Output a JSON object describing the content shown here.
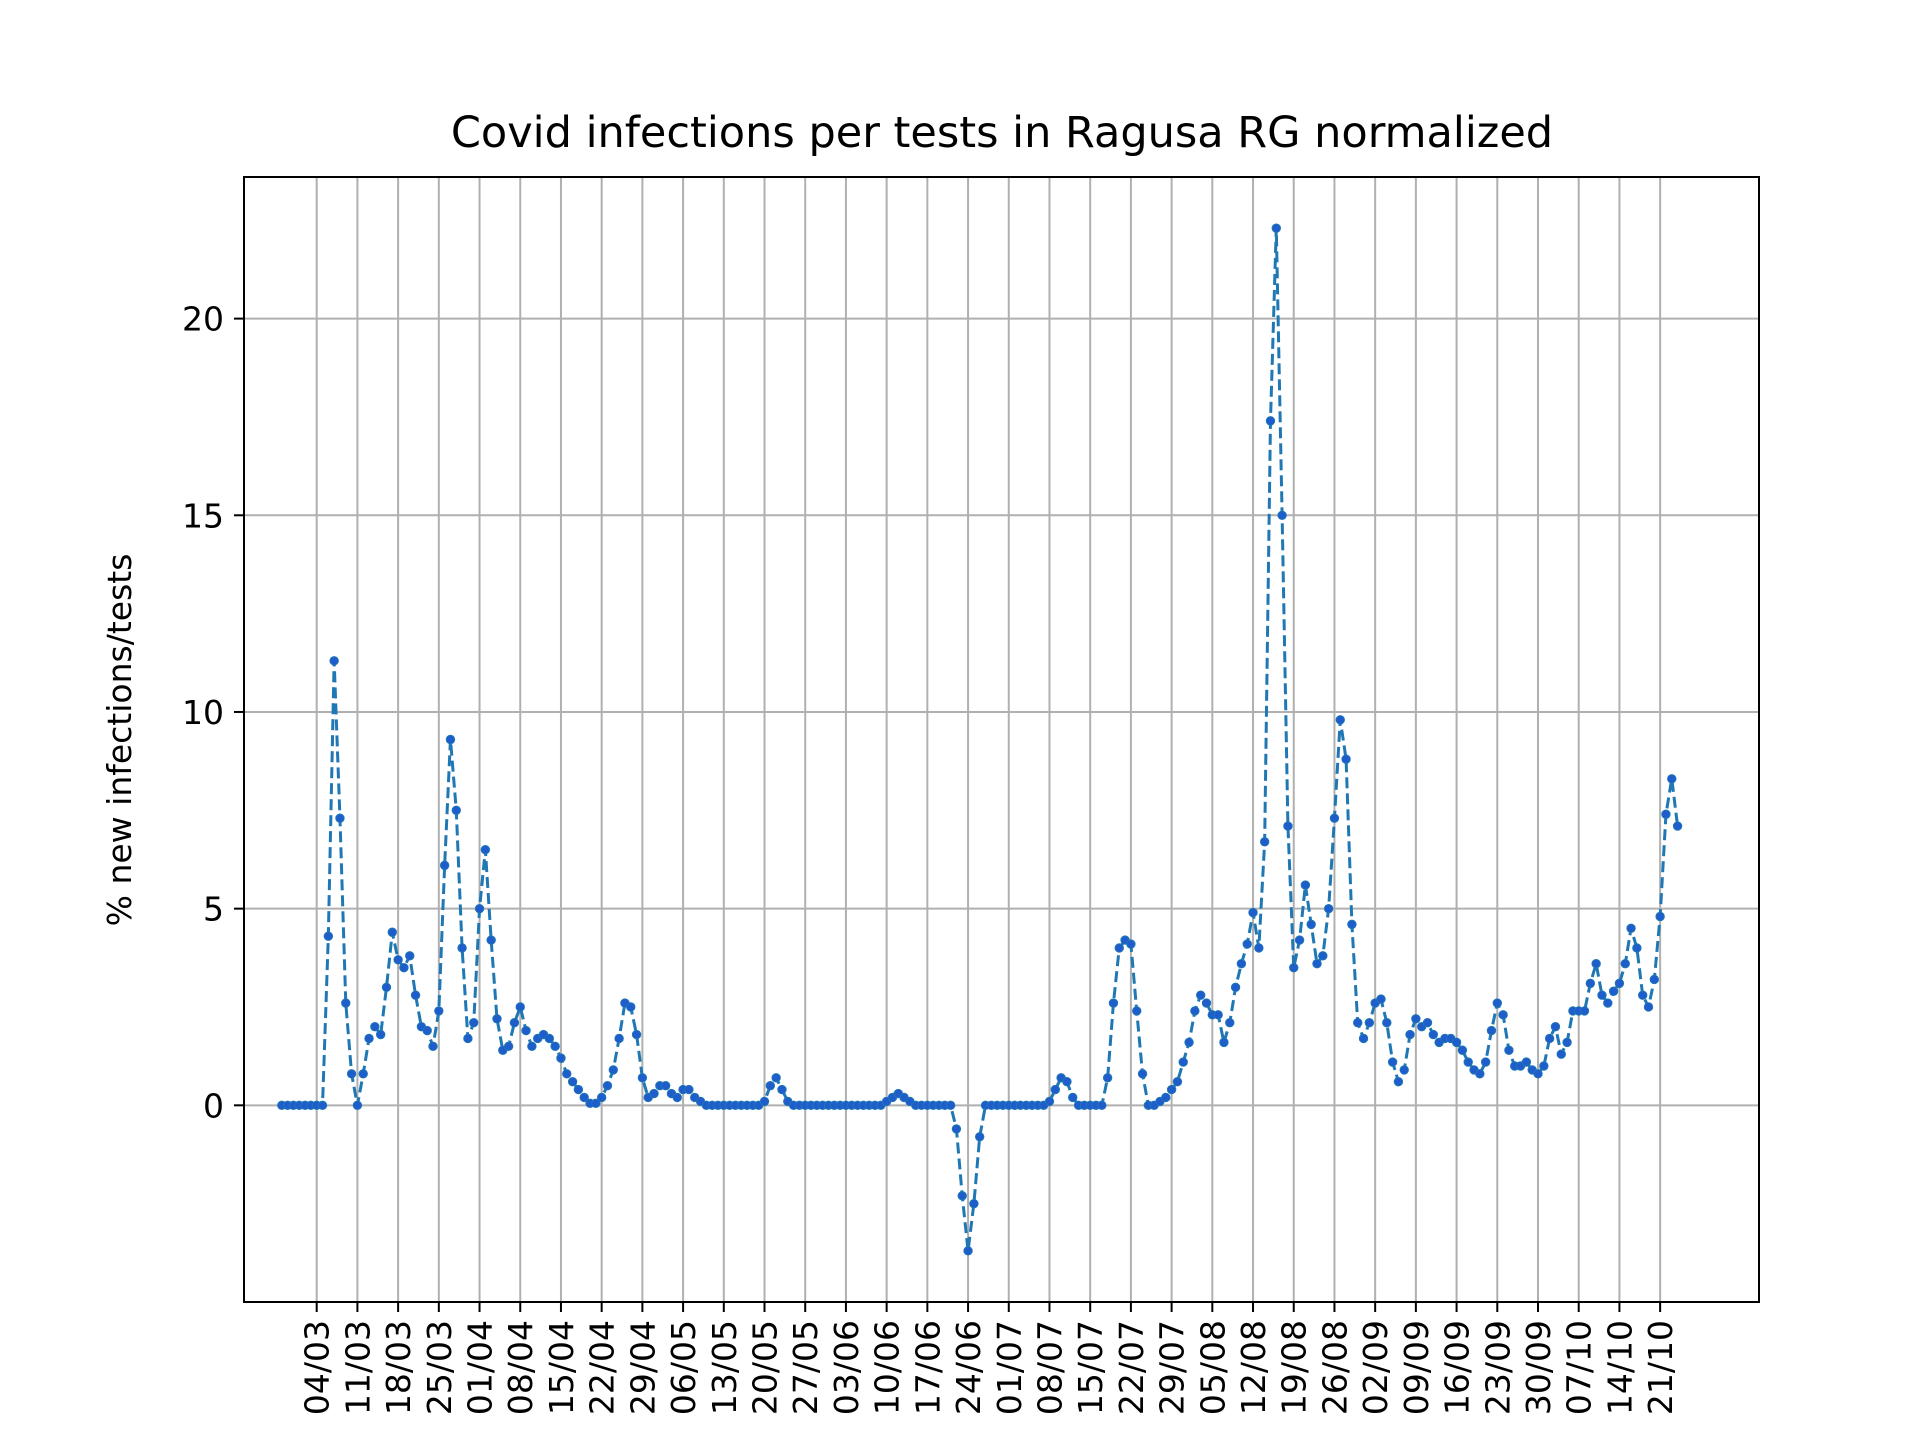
{
  "chart_data": {
    "type": "line",
    "title": "Covid infections per tests in Ragusa RG normalized",
    "ylabel": "% new infections/tests",
    "xlabel": "",
    "grid": true,
    "ylim": [
      -5,
      23.6
    ],
    "xlim": [
      -6.5,
      254
    ],
    "yticks": [
      0,
      5,
      10,
      15,
      20
    ],
    "xtick_labels": [
      "04/03",
      "11/03",
      "18/03",
      "25/03",
      "01/04",
      "08/04",
      "15/04",
      "22/04",
      "29/04",
      "06/05",
      "13/05",
      "20/05",
      "27/05",
      "03/06",
      "10/06",
      "17/06",
      "24/06",
      "01/07",
      "08/07",
      "15/07",
      "22/07",
      "29/07",
      "05/08",
      "12/08",
      "19/08",
      "26/08",
      "02/09",
      "09/09",
      "16/09",
      "23/09",
      "30/09",
      "07/10",
      "14/10",
      "21/10"
    ],
    "xtick_positions": [
      6,
      13,
      20,
      27,
      34,
      41,
      48,
      55,
      62,
      69,
      76,
      83,
      90,
      97,
      104,
      111,
      118,
      125,
      132,
      139,
      146,
      153,
      160,
      167,
      174,
      181,
      188,
      195,
      202,
      209,
      216,
      223,
      230,
      237
    ],
    "series": [
      {
        "color": "#1f77b4",
        "marker_color": "#1f5ccc",
        "line_style": "dashed",
        "values": [
          0,
          0,
          0,
          0,
          0,
          0,
          0,
          0,
          4.3,
          11.3,
          7.3,
          2.6,
          0.8,
          0,
          0.8,
          1.7,
          2,
          1.8,
          3,
          4.4,
          3.7,
          3.5,
          3.8,
          2.8,
          2,
          1.9,
          1.5,
          2.4,
          6.1,
          9.3,
          7.5,
          4,
          1.7,
          2.1,
          5,
          6.5,
          4.2,
          2.2,
          1.4,
          1.5,
          2.1,
          2.5,
          1.9,
          1.5,
          1.7,
          1.8,
          1.7,
          1.5,
          1.2,
          0.8,
          0.6,
          0.4,
          0.2,
          0.05,
          0.05,
          0.2,
          0.5,
          0.9,
          1.7,
          2.6,
          2.5,
          1.8,
          0.7,
          0.2,
          0.3,
          0.5,
          0.5,
          0.3,
          0.2,
          0.4,
          0.4,
          0.2,
          0.1,
          0,
          0,
          0,
          0,
          0,
          0,
          0,
          0,
          0,
          0,
          0.1,
          0.5,
          0.7,
          0.4,
          0.1,
          0,
          0,
          0,
          0,
          0,
          0,
          0,
          0,
          0,
          0,
          0,
          0,
          0,
          0,
          0,
          0,
          0.1,
          0.2,
          0.3,
          0.2,
          0.1,
          0,
          0,
          0,
          0,
          0,
          0,
          0,
          -0.6,
          -2.3,
          -3.7,
          -2.5,
          -0.8,
          0,
          0,
          0,
          0,
          0,
          0,
          0,
          0,
          0,
          0,
          0,
          0.1,
          0.4,
          0.7,
          0.6,
          0.2,
          0,
          0,
          0,
          0,
          0,
          0.7,
          2.6,
          4,
          4.2,
          4.1,
          2.4,
          0.8,
          0,
          0,
          0.1,
          0.2,
          0.4,
          0.6,
          1.1,
          1.6,
          2.4,
          2.8,
          2.6,
          2.3,
          2.3,
          1.6,
          2.1,
          3,
          3.6,
          4.1,
          4.9,
          4.0,
          6.7,
          17.4,
          22.3,
          15,
          7.1,
          3.5,
          4.2,
          5.6,
          4.6,
          3.6,
          3.8,
          5,
          7.3,
          9.8,
          8.8,
          4.6,
          2.1,
          1.7,
          2.1,
          2.6,
          2.7,
          2.1,
          1.1,
          0.6,
          0.9,
          1.8,
          2.2,
          2.0,
          2.1,
          1.8,
          1.6,
          1.7,
          1.7,
          1.6,
          1.4,
          1.1,
          0.9,
          0.8,
          1.1,
          1.9,
          2.6,
          2.3,
          1.4,
          1.0,
          1.0,
          1.1,
          0.9,
          0.8,
          1.0,
          1.7,
          2,
          1.3,
          1.6,
          2.4,
          2.4,
          2.4,
          3.1,
          3.6,
          2.8,
          2.6,
          2.9,
          3.1,
          3.6,
          4.5,
          4,
          2.8,
          2.5,
          3.2,
          4.8,
          7.4,
          8.3,
          7.1
        ]
      }
    ]
  }
}
